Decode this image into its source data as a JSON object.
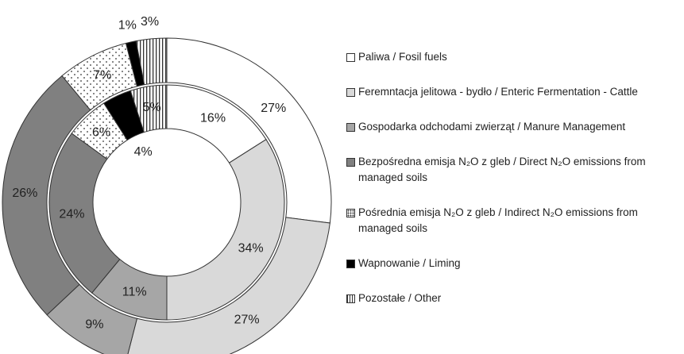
{
  "chart_data": {
    "type": "donut",
    "categories": [
      "Paliwa / Fosil fuels",
      "Feremntacja jelitowa - bydło / Enteric Fermentation - Cattle",
      "Gospodarka odchodami zwierząt / Manure Management",
      "Bezpośredna emisja N₂O z gleb / Direct N₂O emissions from managed soils",
      "Pośrednia emisja N₂O z gleb /  Indirect N₂O emissions from managed soils",
      "Wapnowanie / Liming",
      "Pozostałe / Other"
    ],
    "fills": [
      "#ffffff",
      "#d9d9d9",
      "#a6a6a6",
      "#808080",
      "dots",
      "#000000",
      "stripes"
    ],
    "rings": [
      {
        "values": [
          27,
          27,
          9,
          26,
          7,
          1,
          3
        ],
        "value_labels": [
          "27%",
          "27%",
          "9%",
          "26%",
          "7%",
          "1%",
          "3%"
        ]
      },
      {
        "values": [
          16,
          34,
          11,
          24,
          6,
          4,
          5
        ],
        "value_labels": [
          "16%",
          "34%",
          "11%",
          "24%",
          "6%",
          "4%",
          "5%"
        ]
      }
    ],
    "legend": "right"
  }
}
